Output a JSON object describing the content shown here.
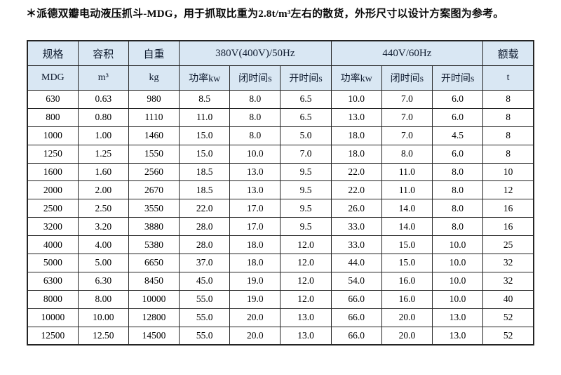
{
  "note": "＊派德双瓣电动液压抓斗-MDG，用于抓取比重为2.8t/m³左右的散货，外形尺寸以设计方案图为参考。",
  "colors": {
    "header_bg": "#d9e7f3",
    "header_text": "#101c30",
    "border": "#242424"
  },
  "table": {
    "group_headers": [
      {
        "label": "规格",
        "colspan": 1
      },
      {
        "label": "容积",
        "colspan": 1
      },
      {
        "label": "自重",
        "colspan": 1
      },
      {
        "label": "380V(400V)/50Hz",
        "colspan": 3
      },
      {
        "label": "440V/60Hz",
        "colspan": 3
      },
      {
        "label": "额载",
        "colspan": 1
      }
    ],
    "sub_headers": [
      "MDG",
      "m³",
      "kg",
      "功率kw",
      "闭时间s",
      "开时间s",
      "功率kw",
      "闭时间s",
      "开时间s",
      "t"
    ],
    "rows": [
      [
        "630",
        "0.63",
        "980",
        "8.5",
        "8.0",
        "6.5",
        "10.0",
        "7.0",
        "6.0",
        "8"
      ],
      [
        "800",
        "0.80",
        "1110",
        "11.0",
        "8.0",
        "6.5",
        "13.0",
        "7.0",
        "6.0",
        "8"
      ],
      [
        "1000",
        "1.00",
        "1460",
        "15.0",
        "8.0",
        "5.0",
        "18.0",
        "7.0",
        "4.5",
        "8"
      ],
      [
        "1250",
        "1.25",
        "1550",
        "15.0",
        "10.0",
        "7.0",
        "18.0",
        "8.0",
        "6.0",
        "8"
      ],
      [
        "1600",
        "1.60",
        "2560",
        "18.5",
        "13.0",
        "9.5",
        "22.0",
        "11.0",
        "8.0",
        "10"
      ],
      [
        "2000",
        "2.00",
        "2670",
        "18.5",
        "13.0",
        "9.5",
        "22.0",
        "11.0",
        "8.0",
        "12"
      ],
      [
        "2500",
        "2.50",
        "3550",
        "22.0",
        "17.0",
        "9.5",
        "26.0",
        "14.0",
        "8.0",
        "16"
      ],
      [
        "3200",
        "3.20",
        "3880",
        "28.0",
        "17.0",
        "9.5",
        "33.0",
        "14.0",
        "8.0",
        "16"
      ],
      [
        "4000",
        "4.00",
        "5380",
        "28.0",
        "18.0",
        "12.0",
        "33.0",
        "15.0",
        "10.0",
        "25"
      ],
      [
        "5000",
        "5.00",
        "6650",
        "37.0",
        "18.0",
        "12.0",
        "44.0",
        "15.0",
        "10.0",
        "32"
      ],
      [
        "6300",
        "6.30",
        "8450",
        "45.0",
        "19.0",
        "12.0",
        "54.0",
        "16.0",
        "10.0",
        "32"
      ],
      [
        "8000",
        "8.00",
        "10000",
        "55.0",
        "19.0",
        "12.0",
        "66.0",
        "16.0",
        "10.0",
        "40"
      ],
      [
        "10000",
        "10.00",
        "12800",
        "55.0",
        "20.0",
        "13.0",
        "66.0",
        "20.0",
        "13.0",
        "52"
      ],
      [
        "12500",
        "12.50",
        "14500",
        "55.0",
        "20.0",
        "13.0",
        "66.0",
        "20.0",
        "13.0",
        "52"
      ]
    ]
  }
}
